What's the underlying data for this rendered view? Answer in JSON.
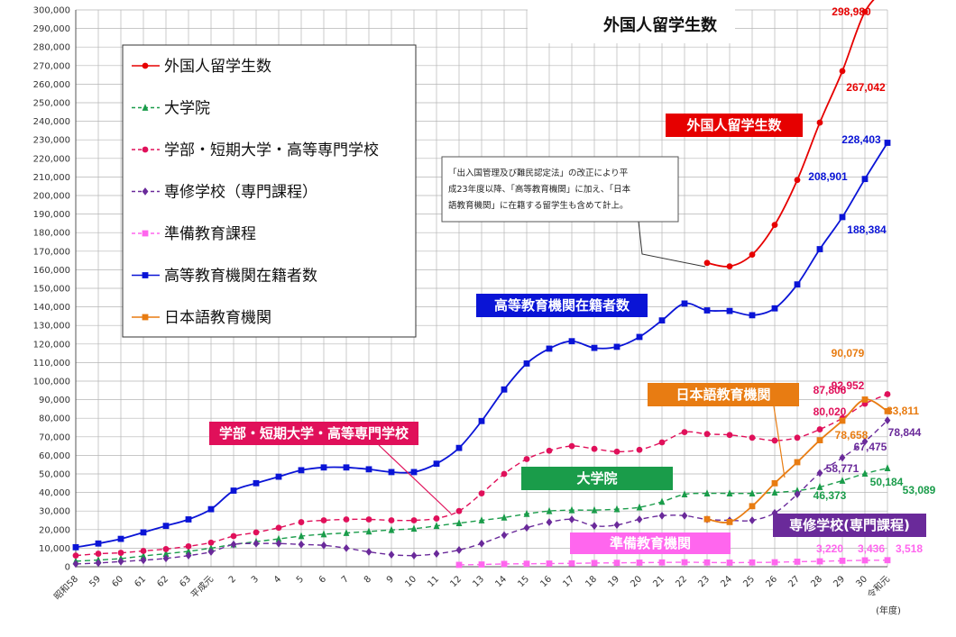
{
  "chart_data": {
    "type": "line",
    "title": "外国人留学生数",
    "unit_label": "(年度)",
    "ylim": [
      0,
      300000
    ],
    "yticks": [
      "0",
      "10,000",
      "20,000",
      "30,000",
      "40,000",
      "50,000",
      "60,000",
      "70,000",
      "80,000",
      "90,000",
      "100,000",
      "110,000",
      "120,000",
      "130,000",
      "140,000",
      "150,000",
      "160,000",
      "170,000",
      "180,000",
      "190,000",
      "200,000",
      "210,000",
      "220,000",
      "230,000",
      "240,000",
      "250,000",
      "260,000",
      "270,000",
      "280,000",
      "290,000",
      "300,000"
    ],
    "categories": [
      "昭和58",
      "59",
      "60",
      "61",
      "62",
      "63",
      "平成元",
      "2",
      "3",
      "4",
      "5",
      "6",
      "7",
      "8",
      "9",
      "10",
      "11",
      "12",
      "13",
      "14",
      "15",
      "16",
      "17",
      "18",
      "19",
      "20",
      "21",
      "22",
      "23",
      "24",
      "25",
      "26",
      "27",
      "28",
      "29",
      "30",
      "令和元"
    ],
    "grid": true,
    "legend_position": "top-left",
    "series": [
      {
        "name": "外国人留学生数",
        "color": "#e60000",
        "marker": "circle",
        "dash": "",
        "values": [
          null,
          null,
          null,
          null,
          null,
          null,
          null,
          null,
          null,
          null,
          null,
          null,
          null,
          null,
          null,
          null,
          null,
          null,
          null,
          null,
          null,
          null,
          null,
          null,
          null,
          null,
          null,
          null,
          163697,
          161848,
          168145,
          184155,
          208379,
          239287,
          267042,
          298980,
          312214
        ]
      },
      {
        "name": "大学院",
        "color": "#1a9c4a",
        "marker": "triangle",
        "dash": "6,4",
        "values": [
          3000,
          3600,
          4400,
          5800,
          7000,
          8300,
          10000,
          12000,
          13500,
          15000,
          16500,
          17500,
          18200,
          19000,
          19800,
          20500,
          22000,
          23500,
          25000,
          26500,
          28500,
          30000,
          30500,
          30500,
          31000,
          32000,
          35000,
          39000,
          39500,
          39500,
          39500,
          40000,
          41000,
          43000,
          46373,
          50184,
          53089
        ]
      },
      {
        "name": "学部・短期大学・高等専門学校",
        "color": "#e0105a",
        "marker": "circle",
        "dash": "6,4",
        "values": [
          6000,
          7000,
          7500,
          8500,
          9500,
          11000,
          13000,
          16500,
          18500,
          21000,
          24000,
          25000,
          25500,
          25500,
          25000,
          25000,
          26000,
          30000,
          39500,
          50000,
          58000,
          62500,
          65000,
          63500,
          62000,
          63000,
          67000,
          72500,
          71500,
          71000,
          69500,
          68000,
          69500,
          74000,
          80020,
          87806,
          92952
        ]
      },
      {
        "name": "専修学校（専門課程）",
        "color": "#6a2a9a",
        "marker": "diamond",
        "dash": "6,4",
        "values": [
          1500,
          2000,
          2800,
          3500,
          4500,
          6000,
          8000,
          12000,
          12500,
          12500,
          12000,
          11500,
          10000,
          8000,
          6500,
          6000,
          7000,
          9000,
          12500,
          17000,
          21000,
          24000,
          25500,
          22000,
          22500,
          25500,
          27500,
          27500,
          25500,
          25000,
          25000,
          29000,
          39000,
          50500,
          58771,
          67475,
          78844
        ]
      },
      {
        "name": "準備教育課程",
        "color": "#ff66ee",
        "marker": "square",
        "dash": "6,4",
        "values": [
          null,
          null,
          null,
          null,
          null,
          null,
          null,
          null,
          null,
          null,
          null,
          null,
          null,
          null,
          null,
          null,
          null,
          1000,
          1200,
          1500,
          1600,
          1700,
          1800,
          2000,
          2100,
          2200,
          2300,
          2400,
          2300,
          2200,
          2300,
          2400,
          2700,
          2900,
          3220,
          3436,
          3518
        ]
      },
      {
        "name": "高等教育機関在籍者数",
        "color": "#0a14d6",
        "marker": "square",
        "dash": "",
        "values": [
          10500,
          12500,
          15000,
          18500,
          22000,
          25500,
          31000,
          41000,
          45000,
          48500,
          52000,
          53500,
          53500,
          52500,
          51000,
          51000,
          55500,
          64000,
          78500,
          95500,
          109500,
          117500,
          121500,
          117900,
          118500,
          123800,
          132700,
          141800,
          138100,
          137800,
          135500,
          139200,
          152100,
          171100,
          188384,
          208901,
          228403
        ]
      },
      {
        "name": "日本語教育機関",
        "color": "#e87c12",
        "marker": "square",
        "dash": "",
        "values": [
          null,
          null,
          null,
          null,
          null,
          null,
          null,
          null,
          null,
          null,
          null,
          null,
          null,
          null,
          null,
          null,
          null,
          null,
          null,
          null,
          null,
          null,
          null,
          null,
          null,
          null,
          null,
          null,
          25622,
          24092,
          32626,
          44970,
          56317,
          68165,
          78658,
          90079,
          83811
        ]
      }
    ],
    "value_labels": [
      {
        "text": "298,980",
        "color": "#e60000"
      },
      {
        "text": "267,042",
        "color": "#e60000"
      },
      {
        "text": "228,403",
        "color": "#0a14d6"
      },
      {
        "text": "208,901",
        "color": "#0a14d6"
      },
      {
        "text": "188,384",
        "color": "#0a14d6"
      },
      {
        "text": "90,079",
        "color": "#e87c12"
      },
      {
        "text": "87,806",
        "color": "#e0105a"
      },
      {
        "text": "80,020",
        "color": "#e0105a"
      },
      {
        "text": "92,952",
        "color": "#e0105a"
      },
      {
        "text": "83,811",
        "color": "#e87c12"
      },
      {
        "text": "78,658",
        "color": "#e87c12"
      },
      {
        "text": "78,844",
        "color": "#6a2a9a"
      },
      {
        "text": "67,475",
        "color": "#6a2a9a"
      },
      {
        "text": "58,771",
        "color": "#6a2a9a"
      },
      {
        "text": "53,089",
        "color": "#1a9c4a"
      },
      {
        "text": "50,184",
        "color": "#1a9c4a"
      },
      {
        "text": "46,373",
        "color": "#1a9c4a"
      },
      {
        "text": "3,220",
        "color": "#ff66ee"
      },
      {
        "text": "3,436",
        "color": "#ff66ee"
      },
      {
        "text": "3,518",
        "color": "#ff66ee"
      }
    ],
    "banners": [
      {
        "text": "外国人留学生数",
        "color": "#e60000"
      },
      {
        "text": "高等教育機関在籍者数",
        "color": "#0a14d6"
      },
      {
        "text": "日本語教育機関",
        "color": "#e87c12"
      },
      {
        "text": "学部・短期大学・高等専門学校",
        "color": "#e0105a"
      },
      {
        "text": "大学院",
        "color": "#1a9c4a"
      },
      {
        "text": "準備教育機関",
        "color": "#ff66ee"
      },
      {
        "text": "専修学校(専門課程)",
        "color": "#6a2a9a"
      }
    ],
    "note_lines": [
      "「出入国管理及び難民認定法」の改正により平",
      "成23年度以降、「高等教育機関」に加え、「日本",
      "語教育機関」に在籍する留学生も含めて計上。"
    ]
  }
}
